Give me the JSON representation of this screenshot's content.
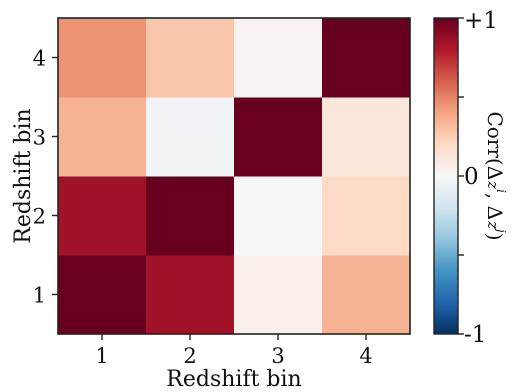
{
  "chart_data": {
    "type": "heatmap",
    "x_categories": [
      "1",
      "2",
      "3",
      "4"
    ],
    "y_categories": [
      "1",
      "2",
      "3",
      "4"
    ],
    "values": [
      [
        1.0,
        0.85,
        0.05,
        0.35
      ],
      [
        0.85,
        1.0,
        0.0,
        0.2
      ],
      [
        0.35,
        -0.03,
        1.0,
        0.12
      ],
      [
        0.45,
        0.28,
        0.03,
        1.0
      ]
    ],
    "xlabel": "Redshift bin",
    "ylabel": "Redshift bin",
    "colorbar": {
      "label": "Corr(Δz^i, Δz^j)",
      "label_main": "Corr(Δ",
      "label_sup1": "i",
      "label_mid": ", Δ",
      "label_sup2": "j",
      "label_end": ")",
      "range": [
        -1,
        1
      ],
      "tick_labels": {
        "max": "+1",
        "mid": "0",
        "min": "-1"
      },
      "colormap": "RdBu_r",
      "low_color": "#053061",
      "mid_color": "#f7f7f7",
      "high_color": "#67001f"
    }
  }
}
